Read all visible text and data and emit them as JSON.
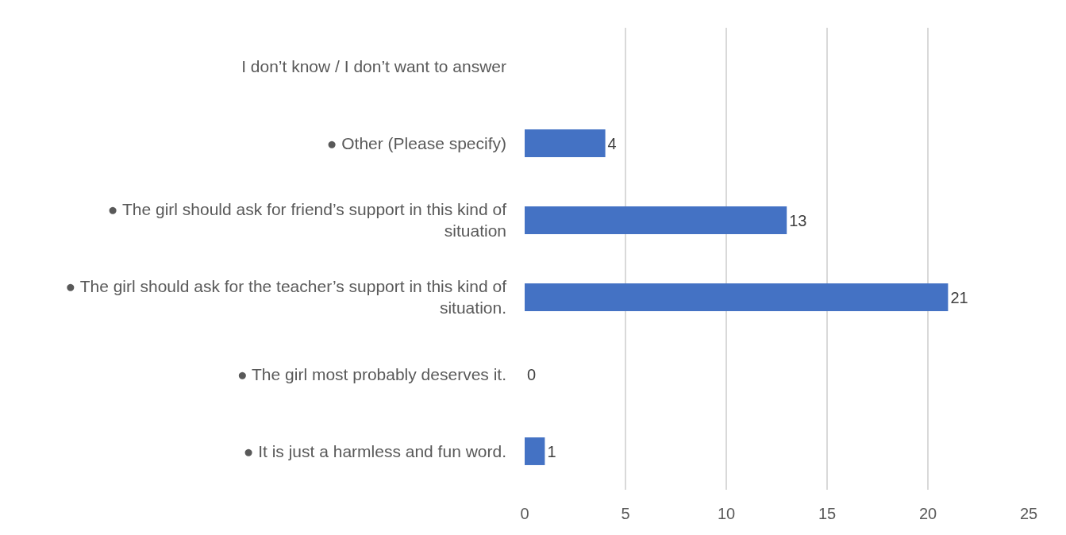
{
  "chart_data": {
    "type": "bar",
    "orientation": "horizontal",
    "categories": [
      "I don’t know / I don’t want to answer",
      "● Other (Please specify)",
      "● The girl should ask for friend’s support in this kind of\nsituation",
      "● The girl should ask for the teacher’s support in this kind of\nsituation.",
      "● The girl most probably deserves it.",
      "● It is just a harmless and fun word."
    ],
    "values": [
      null,
      4,
      13,
      21,
      0,
      1
    ],
    "value_labels": [
      null,
      "4",
      "13",
      "21",
      "0",
      "1"
    ],
    "color": "#4472c4",
    "xlim": [
      0,
      25
    ],
    "xticks": [
      0,
      5,
      10,
      15,
      20,
      25
    ],
    "grid": "x"
  }
}
